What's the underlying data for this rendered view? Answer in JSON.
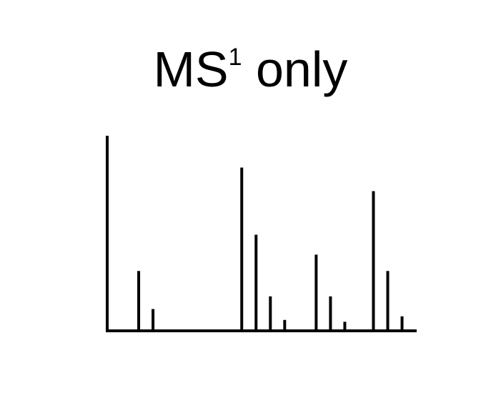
{
  "chart_data": {
    "type": "bar",
    "title_main": "MS",
    "title_superscript": "1",
    "title_suffix": " only",
    "xlabel": "",
    "ylabel": "",
    "xlim": [
      0,
      100
    ],
    "ylim": [
      0,
      100
    ],
    "grid": false,
    "x": [
      11,
      16,
      47,
      52,
      57,
      62,
      73,
      78,
      83,
      93,
      98,
      103
    ],
    "values": [
      33,
      12,
      90,
      53,
      19,
      6,
      42,
      19,
      5,
      77,
      33,
      8
    ],
    "color": "#000000"
  }
}
